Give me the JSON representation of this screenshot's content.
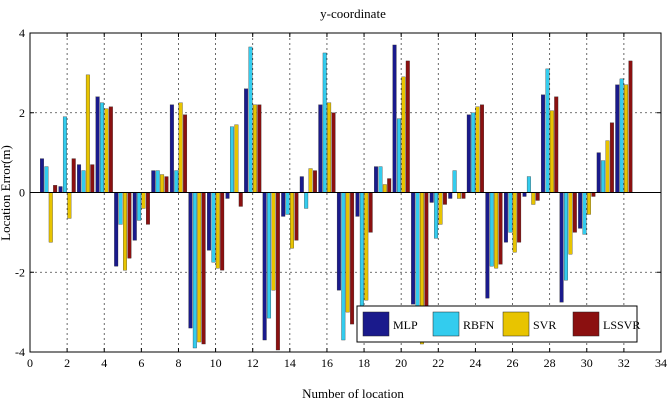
{
  "chart_data": {
    "type": "bar",
    "title": "y-coordinate",
    "xlabel": "Number of location",
    "ylabel": "Location Error(m)",
    "xlim": [
      0,
      34
    ],
    "ylim": [
      -4,
      4
    ],
    "xticks": [
      0,
      2,
      4,
      6,
      8,
      10,
      12,
      14,
      16,
      18,
      20,
      22,
      24,
      26,
      28,
      30,
      32,
      34
    ],
    "yticks": [
      -4,
      -2,
      0,
      2,
      4
    ],
    "grid": "dotted vertical lines every 2 locations, dotted horizontal lines at -2 and 2",
    "legend_position": "bottom-right",
    "categories": [
      1,
      2,
      3,
      4,
      5,
      6,
      7,
      8,
      9,
      10,
      11,
      12,
      13,
      14,
      15,
      16,
      17,
      18,
      19,
      20,
      21,
      22,
      23,
      24,
      25,
      26,
      27,
      28,
      29,
      30,
      31,
      32
    ],
    "series": [
      {
        "name": "MLP",
        "color": "#1a1a8c",
        "values": [
          0.85,
          0.15,
          0.7,
          2.4,
          -1.85,
          -1.2,
          0.55,
          2.2,
          -3.4,
          -1.45,
          -0.15,
          2.6,
          -3.7,
          -0.6,
          0.4,
          2.2,
          -2.45,
          -0.6,
          0.65,
          3.7,
          -2.8,
          -0.25,
          -0.15,
          1.95,
          -2.65,
          -1.25,
          -0.1,
          2.45,
          -2.75,
          -0.9,
          1.0,
          2.7
        ]
      },
      {
        "name": "RBFN",
        "color": "#33ccee",
        "values": [
          0.65,
          1.9,
          0.55,
          2.25,
          -0.8,
          -0.7,
          0.55,
          0.55,
          -3.9,
          -1.75,
          1.65,
          3.65,
          -3.15,
          -0.55,
          -0.4,
          3.5,
          -3.7,
          -3.2,
          0.65,
          1.85,
          -2.9,
          -1.15,
          0.55,
          2.0,
          -1.85,
          -1.0,
          0.4,
          3.1,
          -2.2,
          -1.05,
          0.8,
          2.85
        ]
      },
      {
        "name": "SVR",
        "color": "#e8c400",
        "values": [
          -1.25,
          -0.65,
          2.95,
          2.1,
          -1.95,
          -0.4,
          0.45,
          2.25,
          -3.75,
          -1.9,
          1.7,
          2.2,
          -2.45,
          -1.4,
          0.6,
          2.25,
          -3.0,
          -2.7,
          0.2,
          2.9,
          -3.8,
          -0.8,
          -0.15,
          2.15,
          -1.9,
          -1.5,
          -0.3,
          2.05,
          -1.55,
          -0.55,
          1.3,
          2.7
        ]
      },
      {
        "name": "LSSVR",
        "color": "#8b1010",
        "values": [
          0.18,
          0.85,
          0.7,
          2.15,
          -1.65,
          -0.8,
          0.4,
          1.95,
          -3.8,
          -1.95,
          -0.35,
          2.2,
          -3.95,
          -1.2,
          0.55,
          2.0,
          -3.3,
          -1.0,
          0.35,
          3.3,
          -2.9,
          -0.3,
          -0.15,
          2.2,
          -1.8,
          -1.25,
          -0.2,
          2.4,
          -1.0,
          -0.1,
          1.75,
          3.3
        ]
      }
    ]
  }
}
